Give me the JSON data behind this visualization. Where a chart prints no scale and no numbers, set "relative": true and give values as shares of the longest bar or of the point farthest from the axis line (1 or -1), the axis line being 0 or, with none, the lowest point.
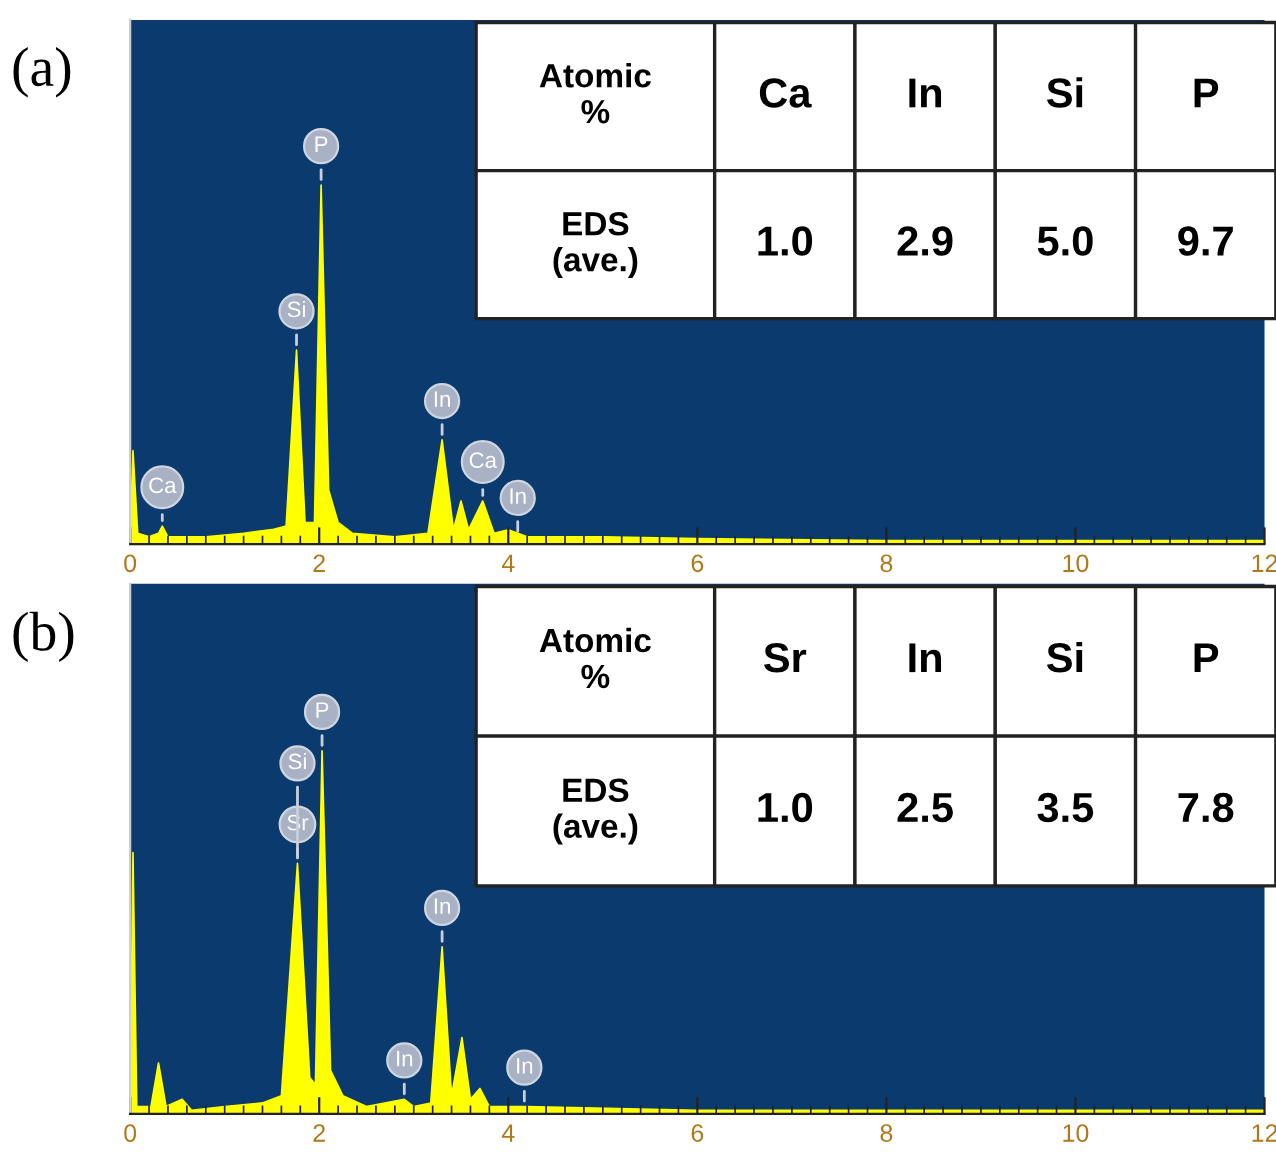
{
  "chart_data": [
    {
      "type": "area",
      "title": "(a)",
      "relative": true,
      "xlim": [
        0,
        12
      ],
      "xticks": [
        0,
        2,
        4,
        6,
        8,
        10,
        12
      ],
      "tick_labels": "x",
      "series": [
        {
          "color": "#ffff00",
          "x": [
            0,
            0.03,
            0.08,
            0.2,
            0.3,
            0.34,
            0.4,
            0.8,
            1.2,
            1.5,
            1.65,
            1.76,
            1.85,
            1.95,
            2.02,
            2.1,
            2.2,
            2.35,
            2.8,
            3.15,
            3.3,
            3.42,
            3.5,
            3.58,
            3.73,
            3.85,
            4.0,
            4.2,
            5,
            6,
            8,
            10,
            12
          ],
          "values": [
            0.02,
            0.26,
            0.03,
            0.02,
            0.03,
            0.05,
            0.02,
            0.02,
            0.03,
            0.04,
            0.05,
            0.54,
            0.06,
            0.06,
            1.0,
            0.15,
            0.06,
            0.03,
            0.02,
            0.03,
            0.29,
            0.04,
            0.12,
            0.04,
            0.12,
            0.03,
            0.04,
            0.02,
            0.02,
            0.015,
            0.01,
            0.01,
            0.01
          ]
        }
      ],
      "annotations": [
        "Atomic\n%",
        "Ca",
        "In",
        "Si",
        "P",
        "EDS\n(ave.)",
        "1.0",
        "2.9",
        "5.0",
        "9.7",
        {
          "text": "Ca",
          "x": 0.34,
          "y": 0.05
        },
        {
          "text": "Si",
          "x": 1.76,
          "y": 0.54
        },
        {
          "text": "P",
          "x": 2.02,
          "y": 1.0
        },
        {
          "text": "In",
          "x": 3.3,
          "y": 0.29
        },
        {
          "text": "Ca",
          "x": 3.73,
          "y": 0.12
        },
        {
          "text": "In",
          "x": 4.1,
          "y": 0.02
        }
      ]
    },
    {
      "type": "area",
      "title": "(b)",
      "relative": true,
      "xlim": [
        0,
        12
      ],
      "xticks": [
        0,
        2,
        4,
        6,
        8,
        10,
        12
      ],
      "tick_labels": "x",
      "series": [
        {
          "color": "#ffff00",
          "x": [
            0,
            0.03,
            0.07,
            0.22,
            0.3,
            0.38,
            0.55,
            0.65,
            1.0,
            1.4,
            1.6,
            1.77,
            1.9,
            1.96,
            2.03,
            2.12,
            2.25,
            2.5,
            2.9,
            3.0,
            3.18,
            3.3,
            3.4,
            3.51,
            3.6,
            3.7,
            3.8,
            4.2,
            6,
            8,
            12
          ],
          "values": [
            0.01,
            0.72,
            0.02,
            0.02,
            0.14,
            0.02,
            0.04,
            0.01,
            0.02,
            0.03,
            0.05,
            0.69,
            0.1,
            0.08,
            1.0,
            0.12,
            0.05,
            0.02,
            0.04,
            0.02,
            0.03,
            0.46,
            0.05,
            0.21,
            0.04,
            0.07,
            0.02,
            0.02,
            0.01,
            0.01,
            0.01
          ]
        }
      ],
      "annotations": [
        "Atomic\n%",
        "Sr",
        "In",
        "Si",
        "P",
        "EDS\n(ave.)",
        "1.0",
        "2.5",
        "3.5",
        "7.8",
        {
          "text": "Sr",
          "x": 1.77,
          "y": 0.69
        },
        {
          "text": "Si",
          "x": 1.77,
          "y": 0.69
        },
        {
          "text": "P",
          "x": 2.03,
          "y": 1.0
        },
        {
          "text": "In",
          "x": 2.9,
          "y": 0.04
        },
        {
          "text": "In",
          "x": 3.3,
          "y": 0.46
        },
        {
          "text": "In",
          "x": 4.17,
          "y": 0.02
        }
      ]
    }
  ]
}
